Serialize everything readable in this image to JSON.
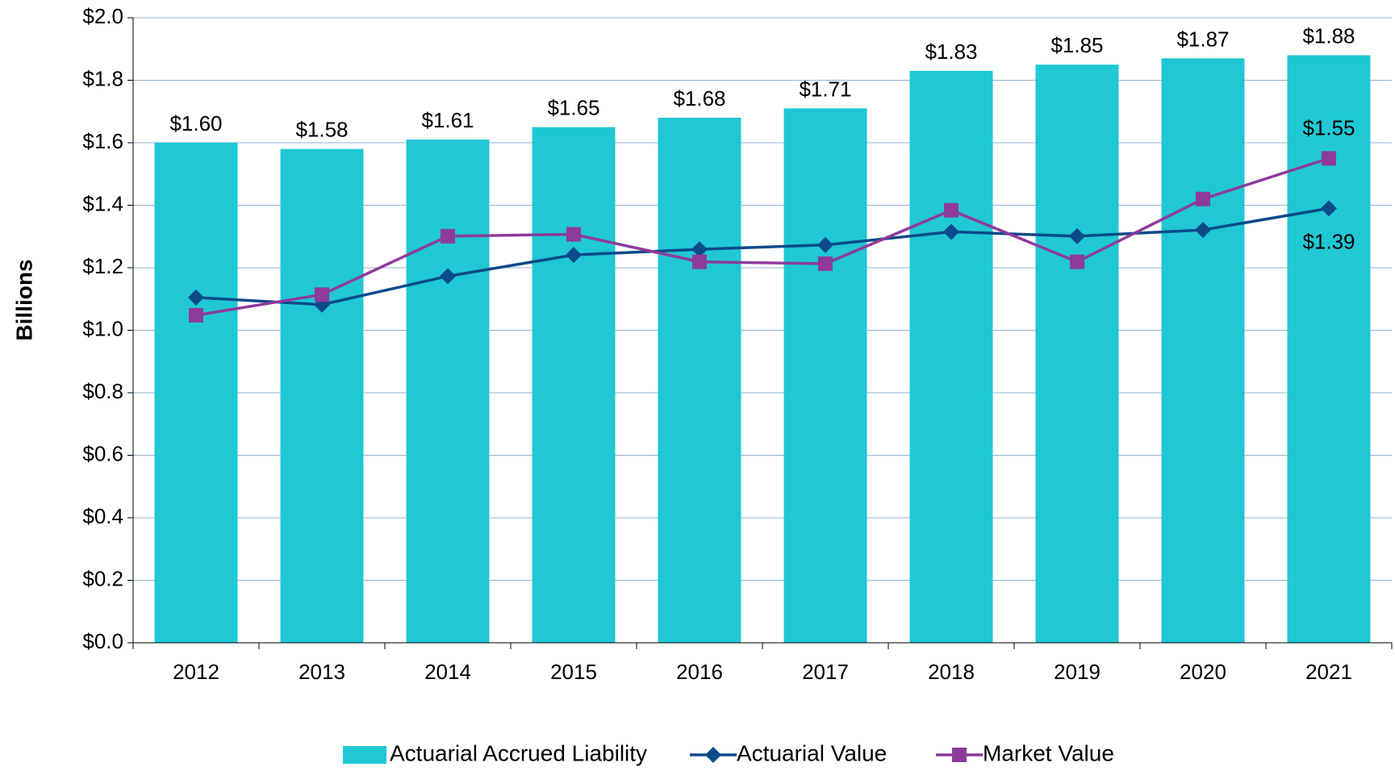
{
  "chart_data": {
    "type": "bar_line",
    "y_label": "Billions",
    "categories": [
      "2012",
      "2013",
      "2014",
      "2015",
      "2016",
      "2017",
      "2018",
      "2019",
      "2020",
      "2021"
    ],
    "ylim": [
      0,
      2.0
    ],
    "yticks": [
      {
        "value": 0,
        "label": "$0.0"
      },
      {
        "value": 0.2,
        "label": "$0.2"
      },
      {
        "value": 0.4,
        "label": "$0.4"
      },
      {
        "value": 0.6,
        "label": "$0.6"
      },
      {
        "value": 0.8,
        "label": "$0.8"
      },
      {
        "value": 1.0,
        "label": "$1.0"
      },
      {
        "value": 1.2,
        "label": "$1.2"
      },
      {
        "value": 1.4,
        "label": "$1.4"
      },
      {
        "value": 1.6,
        "label": "$1.6"
      },
      {
        "value": 1.8,
        "label": "$1.8"
      },
      {
        "value": 2.0,
        "label": "$2.0"
      }
    ],
    "grid": true,
    "legend": "bottom",
    "series": [
      {
        "name": "Actuarial Accrued Liability",
        "type": "bar",
        "color": "#1fc8d4",
        "values": [
          1.6,
          1.58,
          1.61,
          1.65,
          1.68,
          1.71,
          1.83,
          1.85,
          1.87,
          1.88
        ],
        "value_labels": [
          "$1.60",
          "$1.58",
          "$1.61",
          "$1.65",
          "$1.68",
          "$1.71",
          "$1.83",
          "$1.85",
          "$1.87",
          "$1.88"
        ]
      },
      {
        "name": "Actuarial Value",
        "type": "line",
        "marker": "diamond",
        "color": "#0b4a8b",
        "values": [
          1.105,
          1.082,
          1.173,
          1.241,
          1.259,
          1.273,
          1.315,
          1.301,
          1.321,
          1.39
        ],
        "value_labels": [
          null,
          null,
          null,
          null,
          null,
          null,
          null,
          null,
          null,
          "$1.39"
        ]
      },
      {
        "name": "Market Value",
        "type": "line",
        "marker": "square",
        "color": "#8e3a9d",
        "values": [
          1.048,
          1.114,
          1.301,
          1.307,
          1.219,
          1.213,
          1.384,
          1.219,
          1.42,
          1.55
        ],
        "value_labels": [
          null,
          null,
          null,
          null,
          null,
          null,
          null,
          null,
          null,
          "$1.55"
        ]
      }
    ]
  }
}
